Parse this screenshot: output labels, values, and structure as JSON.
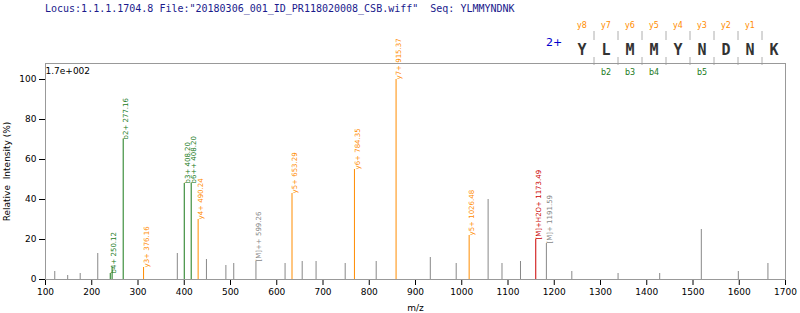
{
  "chart_data": {
    "type": "spectrum",
    "title": "Locus:1.1.1.1704.8 File:\"20180306_001_ID_PR118020008_CSB.wiff\"  Seq: YLMMYNDNK",
    "xlabel": "m/z",
    "ylabel": "Relative  Intensity (%)",
    "x": [
      120,
      148,
      175,
      213,
      240,
      244,
      268,
      312,
      385,
      400,
      415,
      430,
      448,
      490,
      507,
      555,
      618,
      633,
      655,
      685,
      748,
      768,
      815,
      858,
      932,
      988,
      1016,
      1057,
      1087,
      1127,
      1160,
      1183,
      1238,
      1338,
      1428,
      1518,
      1598,
      1662
    ],
    "values": [
      4,
      2,
      3,
      13,
      3,
      6,
      70,
      6,
      13,
      48,
      48,
      30,
      10,
      7,
      8,
      9,
      8,
      43,
      9,
      9,
      8,
      55,
      9,
      100,
      11,
      8,
      22,
      40,
      8,
      9,
      20,
      18,
      4,
      3,
      3,
      25,
      4,
      8
    ],
    "colors": [
      "#888888",
      "#888888",
      "#888888",
      "#888888",
      "#1a7a1a",
      "#1a7a1a",
      "#1a7a1a",
      "#ff8c00",
      "#888888",
      "#1a7a1a",
      "#1a7a1a",
      "#ff8c00",
      "#888888",
      "#888888",
      "#888888",
      "#888888",
      "#888888",
      "#ff8c00",
      "#888888",
      "#888888",
      "#888888",
      "#ff8c00",
      "#888888",
      "#ff8c00",
      "#888888",
      "#888888",
      "#ff8c00",
      "#888888",
      "#888888",
      "#888888",
      "#cc0000",
      "#888888",
      "#888888",
      "#888888",
      "#888888",
      "#888888",
      "#888888",
      "#888888"
    ],
    "peak_labels": [
      {
        "x": 240,
        "y": 3,
        "text": "b4+ 250.12",
        "color": "#1a7a1a"
      },
      {
        "x": 268,
        "y": 70,
        "text": "b2+ 277.16",
        "color": "#1a7a1a"
      },
      {
        "x": 312,
        "y": 6,
        "text": "y3+ 376.16",
        "color": "#ff8c00"
      },
      {
        "x": 400,
        "y": 48,
        "text": "b3+ 408.20",
        "color": "#1a7a1a"
      },
      {
        "x": 415,
        "y": 48,
        "text": "b6++ 408.20",
        "color": "#1a7a1a"
      },
      {
        "x": 430,
        "y": 30,
        "text": "y4+ 490.24",
        "color": "#ff8c00"
      },
      {
        "x": 555,
        "y": 9,
        "text": "[M]++ 599.26",
        "color": "#888888"
      },
      {
        "x": 633,
        "y": 43,
        "text": "y5+ 653.29",
        "color": "#ff8c00"
      },
      {
        "x": 768,
        "y": 55,
        "text": "y6+ 784.35",
        "color": "#ff8c00"
      },
      {
        "x": 858,
        "y": 100,
        "text": "y7+ 915.37",
        "color": "#ff8c00"
      },
      {
        "x": 1016,
        "y": 22,
        "text": "y5+ 1026.48",
        "color": "#ff8c00"
      },
      {
        "x": 1160,
        "y": 20,
        "text": "[M]+H2O+ 1173.49",
        "color": "#cc0000"
      },
      {
        "x": 1183,
        "y": 18,
        "text": "[M]+ 1191.59",
        "color": "#888888"
      }
    ],
    "annotations": [
      {
        "x": 100,
        "y": 103,
        "text": "1.7e+002"
      }
    ],
    "xlim": [
      100,
      1700
    ],
    "xticks": [
      100,
      200,
      300,
      400,
      500,
      600,
      700,
      800,
      900,
      1000,
      1100,
      1200,
      1300,
      1400,
      1500,
      1600,
      1700
    ],
    "ylim": [
      0,
      108
    ],
    "yticks": [
      0,
      20,
      40,
      60,
      80,
      100
    ],
    "peptide": {
      "sequence": "YLMMYNDNK",
      "charge": "2+",
      "y_ions": [
        "y8",
        "y7",
        "y6",
        "y5",
        "y4",
        "y3",
        "y2",
        "y1"
      ],
      "y_color": "#ff8c00",
      "b_ions": [
        {
          "label": "b2",
          "pos": 1
        },
        {
          "label": "b3",
          "pos": 2
        },
        {
          "label": "b4",
          "pos": 3
        },
        {
          "label": "b5",
          "pos": 5
        }
      ],
      "b_color": "#1a7a1a"
    }
  }
}
